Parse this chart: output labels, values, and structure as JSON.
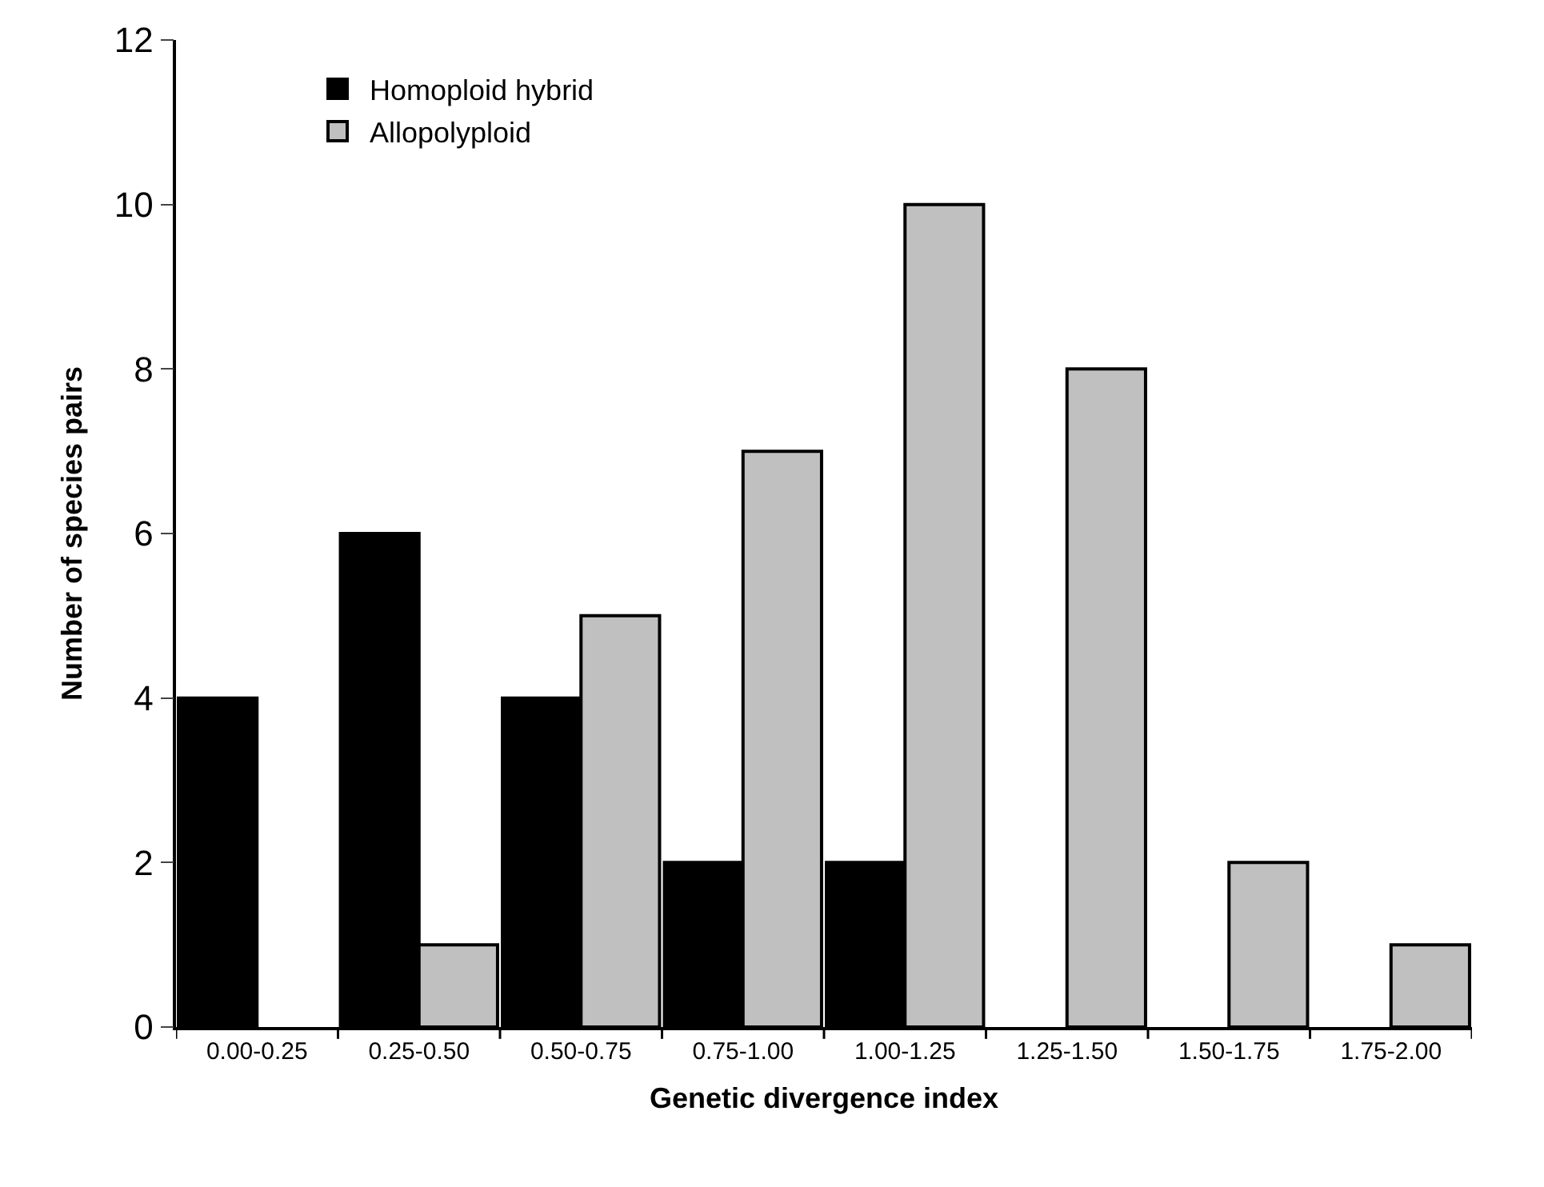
{
  "chart_data": {
    "type": "bar",
    "xlabel": "Genetic divergence index",
    "ylabel": "Number of species pairs",
    "categories": [
      "0.00-0.25",
      "0.25-0.50",
      "0.50-0.75",
      "0.75-1.00",
      "1.00-1.25",
      "1.25-1.50",
      "1.50-1.75",
      "1.75-2.00"
    ],
    "series": [
      {
        "name": "Homoploid hybrid",
        "color": "#000000",
        "values": [
          4,
          6,
          4,
          2,
          2,
          null,
          null,
          null
        ]
      },
      {
        "name": "Allopolyploid",
        "color": "#c0c0c0",
        "values": [
          null,
          1,
          5,
          7,
          10,
          8,
          2,
          1
        ]
      }
    ],
    "ylim": [
      0,
      12
    ],
    "yticks": [
      0,
      2,
      4,
      6,
      8,
      10,
      12
    ],
    "legend": "top left"
  }
}
